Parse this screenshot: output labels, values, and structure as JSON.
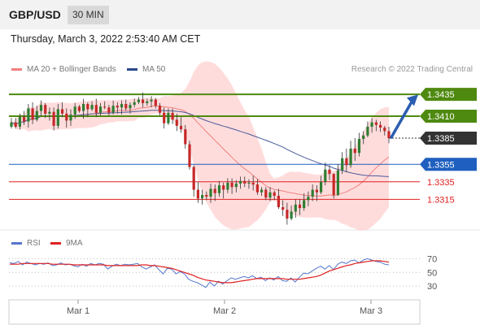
{
  "header": {
    "symbol": "GBP/USD",
    "timeframe": "30 MIN"
  },
  "datetime": "Thursday, March 3, 2022 2:53:40 AM CET",
  "legend": {
    "ma20_label": "MA 20 + Bollinger Bands",
    "ma50_label": "MA 50",
    "copyright": "Research © 2022 Trading Central"
  },
  "rsi_legend": {
    "rsi_label": "RSI",
    "ma_label": "9MA"
  },
  "colors": {
    "support": "#1f5fbf",
    "resistance": "#4f8a10",
    "current": "#333333",
    "red_level": "#e02020",
    "candle_up": "#2e7d32",
    "candle_down": "#c62828",
    "bollinger": "#ffd0d0",
    "ma20": "#f08080",
    "ma50": "#4a5a9a",
    "arrow": "#2a5db0",
    "rsi": "#5577cc",
    "rsi_ma": "#e02020"
  },
  "chart_data": {
    "type": "candlestick",
    "x_ticks": [
      "Mar 1",
      "Mar 2",
      "Mar 3"
    ],
    "y_range": [
      1.328,
      1.345
    ],
    "levels": [
      {
        "value": 1.3435,
        "label": "1.3435",
        "kind": "resistance"
      },
      {
        "value": 1.341,
        "label": "1.3410",
        "kind": "resistance"
      },
      {
        "value": 1.3385,
        "label": "1.3385",
        "kind": "current"
      },
      {
        "value": 1.3355,
        "label": "1.3355",
        "kind": "support"
      },
      {
        "value": 1.3335,
        "label": "1.3335",
        "kind": "red"
      },
      {
        "value": 1.3315,
        "label": "1.3315",
        "kind": "red"
      }
    ],
    "candles": [
      [
        1.3398,
        1.3408,
        1.3396,
        1.3403
      ],
      [
        1.3403,
        1.3408,
        1.3396,
        1.3398
      ],
      [
        1.3398,
        1.3413,
        1.3395,
        1.3409
      ],
      [
        1.3409,
        1.3416,
        1.34,
        1.3404
      ],
      [
        1.3404,
        1.3424,
        1.3397,
        1.3419
      ],
      [
        1.3419,
        1.3426,
        1.3401,
        1.3406
      ],
      [
        1.3406,
        1.3422,
        1.3404,
        1.3416
      ],
      [
        1.3416,
        1.3428,
        1.341,
        1.3423
      ],
      [
        1.3423,
        1.3425,
        1.3408,
        1.3413
      ],
      [
        1.3413,
        1.342,
        1.3405,
        1.3415
      ],
      [
        1.3415,
        1.342,
        1.3394,
        1.3399
      ],
      [
        1.3399,
        1.3424,
        1.3396,
        1.3418
      ],
      [
        1.3418,
        1.3426,
        1.3409,
        1.3413
      ],
      [
        1.3413,
        1.3419,
        1.3397,
        1.3405
      ],
      [
        1.3405,
        1.3418,
        1.3399,
        1.3412
      ],
      [
        1.3412,
        1.3425,
        1.3407,
        1.3421
      ],
      [
        1.3421,
        1.3423,
        1.3414,
        1.3416
      ],
      [
        1.3416,
        1.343,
        1.3407,
        1.3424
      ],
      [
        1.3424,
        1.3426,
        1.3409,
        1.3418
      ],
      [
        1.3418,
        1.3427,
        1.3416,
        1.3423
      ],
      [
        1.3423,
        1.343,
        1.3409,
        1.3414
      ],
      [
        1.3414,
        1.3425,
        1.3411,
        1.3421
      ],
      [
        1.3421,
        1.3427,
        1.3418,
        1.342
      ],
      [
        1.342,
        1.3423,
        1.3411,
        1.3414
      ],
      [
        1.3414,
        1.3428,
        1.3412,
        1.3422
      ],
      [
        1.3422,
        1.3426,
        1.3413,
        1.342
      ],
      [
        1.342,
        1.3428,
        1.3412,
        1.3424
      ],
      [
        1.3424,
        1.3429,
        1.3416,
        1.3419
      ],
      [
        1.3419,
        1.3426,
        1.3413,
        1.3423
      ],
      [
        1.3423,
        1.343,
        1.342,
        1.3426
      ],
      [
        1.3426,
        1.3432,
        1.3424,
        1.3429
      ],
      [
        1.3429,
        1.3437,
        1.342,
        1.3425
      ],
      [
        1.3425,
        1.343,
        1.3422,
        1.3427
      ],
      [
        1.3427,
        1.3433,
        1.342,
        1.3429
      ],
      [
        1.3429,
        1.3431,
        1.3419,
        1.3422
      ],
      [
        1.3422,
        1.3425,
        1.3411,
        1.3414
      ],
      [
        1.3414,
        1.342,
        1.3396,
        1.3402
      ],
      [
        1.3402,
        1.3419,
        1.34,
        1.3414
      ],
      [
        1.3414,
        1.3419,
        1.3401,
        1.3406
      ],
      [
        1.3406,
        1.3413,
        1.3393,
        1.3399
      ],
      [
        1.3399,
        1.3409,
        1.3391,
        1.3395
      ],
      [
        1.3395,
        1.34,
        1.3373,
        1.3378
      ],
      [
        1.3378,
        1.3382,
        1.3349,
        1.3352
      ],
      [
        1.3352,
        1.3354,
        1.3318,
        1.3326
      ],
      [
        1.3326,
        1.3335,
        1.3311,
        1.3316
      ],
      [
        1.3316,
        1.3326,
        1.3309,
        1.332
      ],
      [
        1.332,
        1.3324,
        1.3314,
        1.3318
      ],
      [
        1.3318,
        1.3333,
        1.3311,
        1.3327
      ],
      [
        1.3327,
        1.3332,
        1.3313,
        1.3322
      ],
      [
        1.3322,
        1.3336,
        1.3318,
        1.3331
      ],
      [
        1.3331,
        1.3334,
        1.3316,
        1.3326
      ],
      [
        1.3326,
        1.3339,
        1.3322,
        1.3334
      ],
      [
        1.3334,
        1.3339,
        1.3321,
        1.3329
      ],
      [
        1.3329,
        1.3337,
        1.3323,
        1.3333
      ],
      [
        1.3333,
        1.3341,
        1.3327,
        1.3336
      ],
      [
        1.3336,
        1.3341,
        1.3329,
        1.3333
      ],
      [
        1.3333,
        1.3338,
        1.3327,
        1.3334
      ],
      [
        1.3334,
        1.3342,
        1.3325,
        1.3332
      ],
      [
        1.3332,
        1.3338,
        1.332,
        1.3323
      ],
      [
        1.3323,
        1.3329,
        1.3319,
        1.3326
      ],
      [
        1.3326,
        1.3329,
        1.3314,
        1.3317
      ],
      [
        1.3317,
        1.3329,
        1.3313,
        1.3323
      ],
      [
        1.3323,
        1.3325,
        1.3314,
        1.3319
      ],
      [
        1.3319,
        1.3327,
        1.3304,
        1.3306
      ],
      [
        1.3306,
        1.3314,
        1.3296,
        1.3303
      ],
      [
        1.3303,
        1.3311,
        1.3286,
        1.3293
      ],
      [
        1.3293,
        1.3308,
        1.3291,
        1.3301
      ],
      [
        1.3301,
        1.3315,
        1.3294,
        1.3309
      ],
      [
        1.3309,
        1.3315,
        1.3297,
        1.3305
      ],
      [
        1.3305,
        1.3322,
        1.3302,
        1.3314
      ],
      [
        1.3314,
        1.3324,
        1.3307,
        1.3318
      ],
      [
        1.3318,
        1.3332,
        1.3313,
        1.3326
      ],
      [
        1.3326,
        1.3331,
        1.3313,
        1.3323
      ],
      [
        1.3323,
        1.3342,
        1.3321,
        1.3335
      ],
      [
        1.3335,
        1.3357,
        1.3331,
        1.3349
      ],
      [
        1.3349,
        1.3354,
        1.3337,
        1.3344
      ],
      [
        1.3344,
        1.3345,
        1.3316,
        1.332
      ],
      [
        1.332,
        1.3355,
        1.3319,
        1.3348
      ],
      [
        1.3348,
        1.3369,
        1.3344,
        1.3362
      ],
      [
        1.3362,
        1.3373,
        1.3346,
        1.3354
      ],
      [
        1.3354,
        1.3382,
        1.3351,
        1.3373
      ],
      [
        1.3373,
        1.3385,
        1.3359,
        1.3368
      ],
      [
        1.3368,
        1.3391,
        1.3364,
        1.3384
      ],
      [
        1.3384,
        1.3393,
        1.3378,
        1.3388
      ],
      [
        1.3388,
        1.3404,
        1.3386,
        1.3398
      ],
      [
        1.3398,
        1.3408,
        1.3391,
        1.3403
      ],
      [
        1.3403,
        1.3406,
        1.3393,
        1.34
      ],
      [
        1.34,
        1.3404,
        1.3392,
        1.3397
      ],
      [
        1.3397,
        1.3399,
        1.3388,
        1.3393
      ],
      [
        1.3393,
        1.3398,
        1.3379,
        1.3385
      ]
    ],
    "rsi": {
      "levels": [
        70,
        50,
        30
      ],
      "y_range": [
        10,
        80
      ],
      "rsi_values": [
        64,
        63,
        66,
        61,
        65,
        63,
        61,
        63,
        62,
        64,
        60,
        61,
        64,
        61,
        62,
        60,
        58,
        62,
        59,
        63,
        61,
        63,
        62,
        55,
        59,
        62,
        60,
        62,
        61,
        62,
        63,
        58,
        55,
        58,
        61,
        54,
        48,
        56,
        55,
        48,
        51,
        48,
        40,
        37,
        35,
        32,
        28,
        36,
        30,
        37,
        33,
        38,
        42,
        40,
        42,
        44,
        42,
        45,
        41,
        43,
        38,
        42,
        39,
        44,
        38,
        37,
        42,
        36,
        43,
        49,
        48,
        52,
        56,
        59,
        55,
        60,
        54,
        62,
        65,
        63,
        67,
        68,
        64,
        68,
        70,
        68,
        66,
        65,
        62,
        61
      ],
      "ma_values": [
        62,
        62,
        62,
        63,
        63,
        63,
        63,
        63,
        63,
        63,
        62,
        62,
        62,
        62,
        62,
        61,
        61,
        61,
        61,
        61,
        61,
        61,
        61,
        60,
        60,
        60,
        60,
        60,
        60,
        60,
        60,
        61,
        61,
        60,
        60,
        59,
        58,
        57,
        56,
        54,
        52,
        50,
        48,
        46,
        43,
        41,
        39,
        38,
        37,
        36,
        35,
        35,
        35,
        36,
        37,
        38,
        39,
        40,
        41,
        41,
        41,
        41,
        41,
        41,
        41,
        40,
        40,
        40,
        40,
        41,
        42,
        43,
        44,
        46,
        49,
        52,
        54,
        56,
        58,
        60,
        61,
        63,
        64,
        65,
        66,
        67,
        67,
        67,
        66,
        65
      ]
    }
  }
}
